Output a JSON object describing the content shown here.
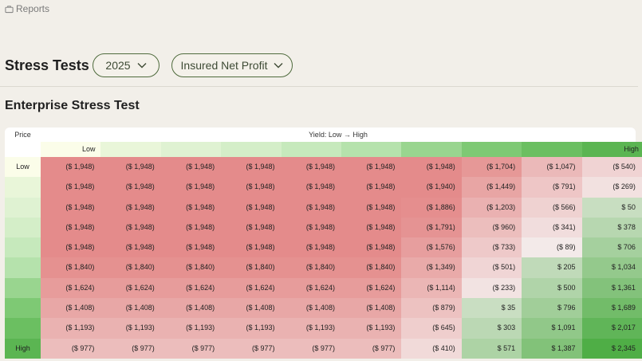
{
  "breadcrumb": {
    "icon": "briefcase-icon",
    "label": "Reports"
  },
  "header": {
    "title": "Stress Tests",
    "year_dropdown": {
      "value": "2025",
      "icon": "chevron-down-icon"
    },
    "metric_dropdown": {
      "value": "Insured Net Profit",
      "icon": "chevron-down-icon"
    }
  },
  "section": {
    "title": "Enterprise Stress Test"
  },
  "table": {
    "corner_label": "Price",
    "axis_title": "Yield: Low → High",
    "yield_low_label": "Low",
    "yield_high_label": "High",
    "price_labels": [
      "Low",
      "",
      "",
      "",
      "",
      "",
      "",
      "",
      "",
      "High"
    ],
    "yield_header_colors": [
      "#fbfde9",
      "#e9f6d9",
      "#dff2d2",
      "#d4eec8",
      "#c6e9bc",
      "#b5e2ac",
      "#99d58f",
      "#7ec974",
      "#6bbf61",
      "#5bb552"
    ],
    "price_colors": [
      "#fbfde9",
      "#e9f6d9",
      "#dff2d2",
      "#d4eec8",
      "#c6e9bc",
      "#b5e2ac",
      "#99d58f",
      "#7ec974",
      "#6bbf61",
      "#5bb552"
    ],
    "rows": [
      [
        "($ 1,948)",
        "($ 1,948)",
        "($ 1,948)",
        "($ 1,948)",
        "($ 1,948)",
        "($ 1,948)",
        "($ 1,948)",
        "($ 1,704)",
        "($ 1,047)",
        "($ 540)"
      ],
      [
        "($ 1,948)",
        "($ 1,948)",
        "($ 1,948)",
        "($ 1,948)",
        "($ 1,948)",
        "($ 1,948)",
        "($ 1,940)",
        "($ 1,449)",
        "($ 791)",
        "($ 269)"
      ],
      [
        "($ 1,948)",
        "($ 1,948)",
        "($ 1,948)",
        "($ 1,948)",
        "($ 1,948)",
        "($ 1,948)",
        "($ 1,886)",
        "($ 1,203)",
        "($ 566)",
        "$ 50"
      ],
      [
        "($ 1,948)",
        "($ 1,948)",
        "($ 1,948)",
        "($ 1,948)",
        "($ 1,948)",
        "($ 1,948)",
        "($ 1,791)",
        "($ 960)",
        "($ 341)",
        "$ 378"
      ],
      [
        "($ 1,948)",
        "($ 1,948)",
        "($ 1,948)",
        "($ 1,948)",
        "($ 1,948)",
        "($ 1,948)",
        "($ 1,576)",
        "($ 733)",
        "($ 89)",
        "$ 706"
      ],
      [
        "($ 1,840)",
        "($ 1,840)",
        "($ 1,840)",
        "($ 1,840)",
        "($ 1,840)",
        "($ 1,840)",
        "($ 1,349)",
        "($ 501)",
        "$ 205",
        "$ 1,034"
      ],
      [
        "($ 1,624)",
        "($ 1,624)",
        "($ 1,624)",
        "($ 1,624)",
        "($ 1,624)",
        "($ 1,624)",
        "($ 1,114)",
        "($ 233)",
        "$ 500",
        "$ 1,361"
      ],
      [
        "($ 1,408)",
        "($ 1,408)",
        "($ 1,408)",
        "($ 1,408)",
        "($ 1,408)",
        "($ 1,408)",
        "($ 879)",
        "$ 35",
        "$ 796",
        "$ 1,689"
      ],
      [
        "($ 1,193)",
        "($ 1,193)",
        "($ 1,193)",
        "($ 1,193)",
        "($ 1,193)",
        "($ 1,193)",
        "($ 645)",
        "$ 303",
        "$ 1,091",
        "$ 2,017"
      ],
      [
        "($ 977)",
        "($ 977)",
        "($ 977)",
        "($ 977)",
        "($ 977)",
        "($ 977)",
        "($ 410)",
        "$ 571",
        "$ 1,387",
        "$ 2,345"
      ]
    ],
    "values": [
      [
        -1948,
        -1948,
        -1948,
        -1948,
        -1948,
        -1948,
        -1948,
        -1704,
        -1047,
        -540
      ],
      [
        -1948,
        -1948,
        -1948,
        -1948,
        -1948,
        -1948,
        -1940,
        -1449,
        -791,
        -269
      ],
      [
        -1948,
        -1948,
        -1948,
        -1948,
        -1948,
        -1948,
        -1886,
        -1203,
        -566,
        50
      ],
      [
        -1948,
        -1948,
        -1948,
        -1948,
        -1948,
        -1948,
        -1791,
        -960,
        -341,
        378
      ],
      [
        -1948,
        -1948,
        -1948,
        -1948,
        -1948,
        -1948,
        -1576,
        -733,
        -89,
        706
      ],
      [
        -1840,
        -1840,
        -1840,
        -1840,
        -1840,
        -1840,
        -1349,
        -501,
        205,
        1034
      ],
      [
        -1624,
        -1624,
        -1624,
        -1624,
        -1624,
        -1624,
        -1114,
        -233,
        500,
        1361
      ],
      [
        -1408,
        -1408,
        -1408,
        -1408,
        -1408,
        -1408,
        -879,
        35,
        796,
        1689
      ],
      [
        -1193,
        -1193,
        -1193,
        -1193,
        -1193,
        -1193,
        -645,
        303,
        1091,
        2017
      ],
      [
        -977,
        -977,
        -977,
        -977,
        -977,
        -977,
        -410,
        571,
        1387,
        2345
      ]
    ],
    "colors": {
      "negative": "#e48b8b",
      "positive": "#4fae46",
      "neutral": "#f4efee"
    }
  }
}
